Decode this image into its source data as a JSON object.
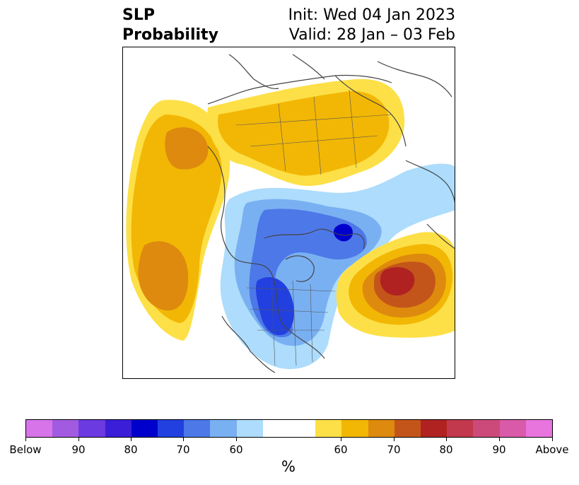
{
  "header": {
    "variable": "SLP",
    "product": "Probability",
    "init": "Init: Wed 04 Jan 2023",
    "valid": "Valid: 28 Jan – 03 Feb"
  },
  "colorbar": {
    "unit": "%",
    "colors": [
      "#d774e9",
      "#a25be0",
      "#6b3ae0",
      "#3b1ed8",
      "#0000cc",
      "#2240e0",
      "#4d78e8",
      "#79b0f2",
      "#addcfc",
      "#ffffff",
      "#ffffff",
      "#fde047",
      "#f2b705",
      "#de8a0e",
      "#c4551a",
      "#b02222",
      "#c2384d",
      "#cc4a7a",
      "#d95aa8",
      "#e874de"
    ],
    "tick_labels": [
      "Below",
      "90",
      "80",
      "70",
      "60",
      "60",
      "70",
      "80",
      "90",
      "Above"
    ]
  }
}
